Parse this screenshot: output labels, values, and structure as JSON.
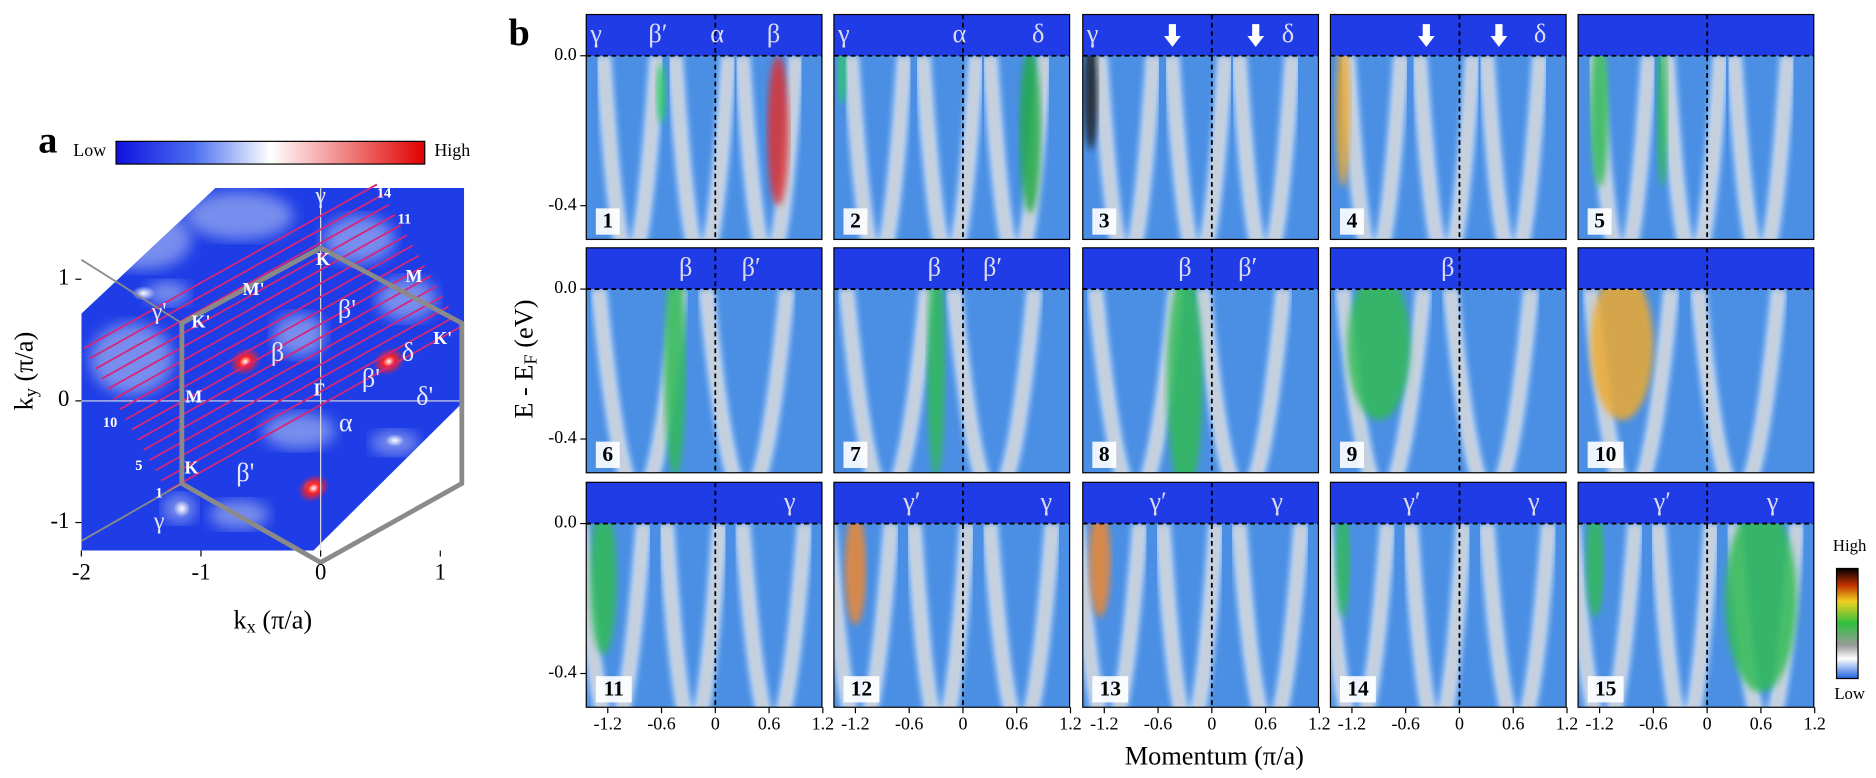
{
  "panel_a": {
    "label": "a",
    "colorbar": {
      "low": "Low",
      "high": "High"
    },
    "x_axis": {
      "label": {
        "main": "k",
        "sub": "x",
        "unit": " (π/a)"
      },
      "lim": [
        -2,
        1.2
      ],
      "ticks": [
        -2,
        -1,
        0,
        1
      ]
    },
    "y_axis": {
      "label": {
        "main": "k",
        "sub": "y",
        "unit": " (π/a)"
      },
      "lim": [
        -1.23,
        1.75
      ],
      "ticks": [
        -1,
        0,
        1
      ]
    },
    "point_labels": [
      "γ",
      "K",
      "M'",
      "M",
      "γ'",
      "K'",
      "β'",
      "δ",
      "K'",
      "β",
      "β'",
      "M",
      "Γ",
      "δ'",
      "α",
      "K",
      "β'",
      "γ"
    ],
    "cut_labels": [
      "14",
      "11",
      "10",
      "5",
      "1"
    ]
  },
  "panel_b": {
    "label": "b",
    "x_axis": {
      "label": "Momentum (π/a)",
      "lim": [
        -1.44,
        1.19
      ],
      "ticks": [
        -1.2,
        -0.6,
        0,
        0.6,
        1.2
      ]
    },
    "y_axis": {
      "label": {
        "main": "E - E",
        "sub": "F",
        "unit": " (eV)"
      },
      "lim": [
        -0.49,
        0.11
      ],
      "ticks": [
        {
          "value": 0,
          "label": "0.0"
        },
        -0.4
      ]
    },
    "colorbar": {
      "high": "High",
      "low": "Low"
    },
    "cuts": [
      {
        "number": "1",
        "bands": [
          "γ",
          "β′",
          "α",
          "β"
        ]
      },
      {
        "number": "2",
        "bands": [
          "γ",
          "α",
          "δ"
        ]
      },
      {
        "number": "3",
        "bands": [
          "γ",
          "δ"
        ]
      },
      {
        "number": "4",
        "bands": [
          "δ"
        ]
      },
      {
        "number": "5",
        "bands": []
      },
      {
        "number": "6",
        "bands": [
          "β",
          "β′"
        ]
      },
      {
        "number": "7",
        "bands": [
          "β",
          "β′"
        ]
      },
      {
        "number": "8",
        "bands": [
          "β",
          "β′"
        ]
      },
      {
        "number": "9",
        "bands": [
          "β"
        ]
      },
      {
        "number": "10",
        "bands": []
      },
      {
        "number": "11",
        "bands": [
          "γ"
        ]
      },
      {
        "number": "12",
        "bands": [
          "γ′",
          "γ"
        ]
      },
      {
        "number": "13",
        "bands": [
          "γ′",
          "γ"
        ]
      },
      {
        "number": "14",
        "bands": [
          "γ′",
          "γ"
        ]
      },
      {
        "number": "15",
        "bands": [
          "γ′",
          "γ"
        ]
      }
    ]
  }
}
